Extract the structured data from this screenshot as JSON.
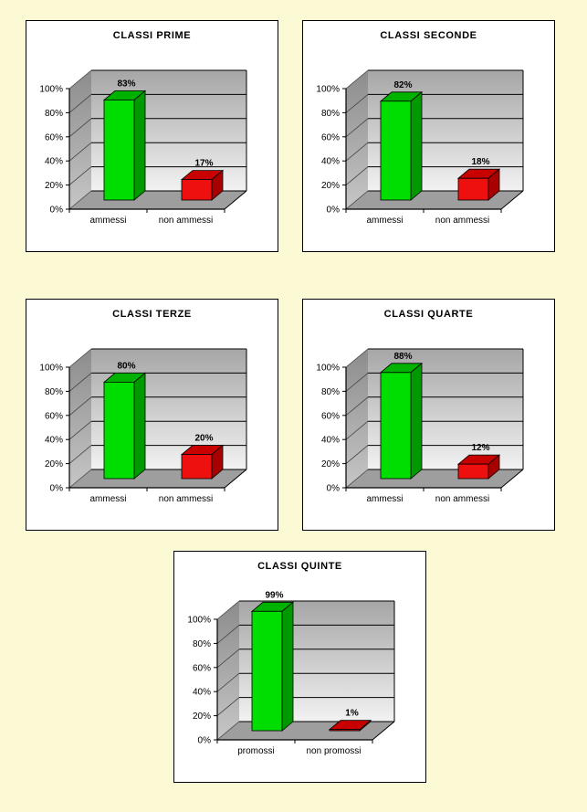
{
  "page": {
    "background_color": "#FCFAD4",
    "panel_background": "#FFFFFF",
    "panel_border": "#000000"
  },
  "palette": {
    "green": {
      "face": "#00DD00",
      "top": "#00B200",
      "side": "#009900"
    },
    "red": {
      "face": "#EE0F0F",
      "top": "#C90000",
      "side": "#A80000"
    },
    "wall_top": "#A6A6A6",
    "wall_bottom": "#F2F2F2",
    "side_wall_top": "#8C8C8C",
    "side_wall_bottom": "#C6C6C6",
    "floor": "#9E9E9E",
    "grid": "#000000"
  },
  "chart_data": [
    {
      "type": "bar",
      "variant": "3d-column",
      "title": "CLASSI PRIME",
      "categories": [
        "ammessi",
        "non ammessi"
      ],
      "values": [
        83,
        17
      ],
      "data_labels": [
        "83%",
        "17%"
      ],
      "series_colors": [
        "green",
        "red"
      ],
      "yticks": [
        "0%",
        "20%",
        "40%",
        "60%",
        "80%",
        "100%"
      ],
      "ylim": [
        0,
        100
      ],
      "grid": true,
      "legend": "none"
    },
    {
      "type": "bar",
      "variant": "3d-column",
      "title": "CLASSI SECONDE",
      "categories": [
        "ammessi",
        "non ammessi"
      ],
      "values": [
        82,
        18
      ],
      "data_labels": [
        "82%",
        "18%"
      ],
      "series_colors": [
        "green",
        "red"
      ],
      "yticks": [
        "0%",
        "20%",
        "40%",
        "60%",
        "80%",
        "100%"
      ],
      "ylim": [
        0,
        100
      ],
      "grid": true,
      "legend": "none"
    },
    {
      "type": "bar",
      "variant": "3d-column",
      "title": "CLASSI TERZE",
      "categories": [
        "ammessi",
        "non ammessi"
      ],
      "values": [
        80,
        20
      ],
      "data_labels": [
        "80%",
        "20%"
      ],
      "series_colors": [
        "green",
        "red"
      ],
      "yticks": [
        "0%",
        "20%",
        "40%",
        "60%",
        "80%",
        "100%"
      ],
      "ylim": [
        0,
        100
      ],
      "grid": true,
      "legend": "none"
    },
    {
      "type": "bar",
      "variant": "3d-column",
      "title": "CLASSI QUARTE",
      "categories": [
        "ammessi",
        "non ammessi"
      ],
      "values": [
        88,
        12
      ],
      "data_labels": [
        "88%",
        "12%"
      ],
      "series_colors": [
        "green",
        "red"
      ],
      "yticks": [
        "0%",
        "20%",
        "40%",
        "60%",
        "80%",
        "100%"
      ],
      "ylim": [
        0,
        100
      ],
      "grid": true,
      "legend": "none"
    },
    {
      "type": "bar",
      "variant": "3d-column",
      "title": "CLASSI QUINTE",
      "categories": [
        "promossi",
        "non promossi"
      ],
      "values": [
        99,
        1
      ],
      "data_labels": [
        "99%",
        "1%"
      ],
      "series_colors": [
        "green",
        "red"
      ],
      "yticks": [
        "0%",
        "20%",
        "40%",
        "60%",
        "80%",
        "100%"
      ],
      "ylim": [
        0,
        100
      ],
      "grid": true,
      "legend": "none"
    }
  ]
}
